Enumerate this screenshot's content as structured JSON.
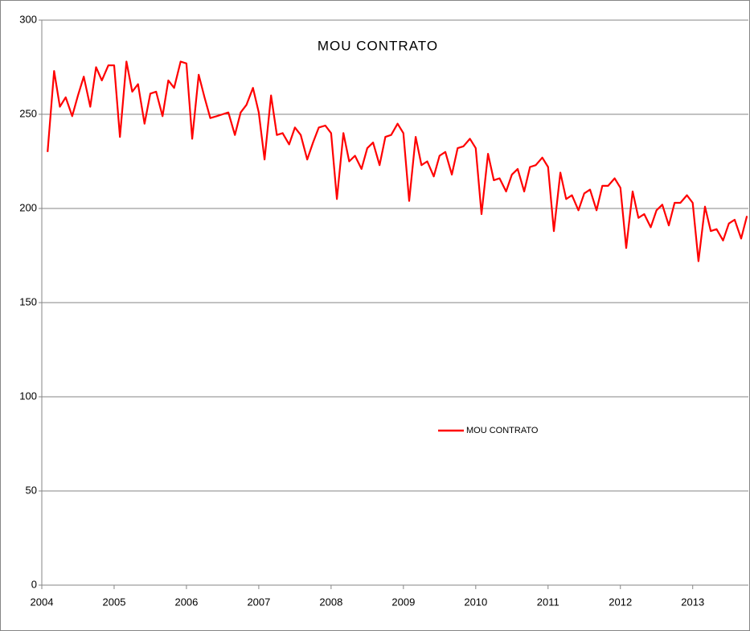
{
  "chart_data": {
    "type": "line",
    "title": "MOU CONTRATO",
    "x": [
      2004.08,
      2004.17,
      2004.25,
      2004.33,
      2004.42,
      2004.5,
      2004.58,
      2004.67,
      2004.75,
      2004.83,
      2004.92,
      2005,
      2005.08,
      2005.17,
      2005.25,
      2005.33,
      2005.42,
      2005.5,
      2005.58,
      2005.67,
      2005.75,
      2005.83,
      2005.92,
      2006,
      2006.08,
      2006.17,
      2006.25,
      2006.33,
      2006.42,
      2006.5,
      2006.58,
      2006.67,
      2006.75,
      2006.83,
      2006.92,
      2007,
      2007.08,
      2007.17,
      2007.25,
      2007.33,
      2007.42,
      2007.5,
      2007.58,
      2007.67,
      2007.75,
      2007.83,
      2007.92,
      2008,
      2008.08,
      2008.17,
      2008.25,
      2008.33,
      2008.42,
      2008.5,
      2008.58,
      2008.67,
      2008.75,
      2008.83,
      2008.92,
      2009,
      2009.08,
      2009.17,
      2009.25,
      2009.33,
      2009.42,
      2009.5,
      2009.58,
      2009.67,
      2009.75,
      2009.83,
      2009.92,
      2010,
      2010.08,
      2010.17,
      2010.25,
      2010.33,
      2010.42,
      2010.5,
      2010.58,
      2010.67,
      2010.75,
      2010.83,
      2010.92,
      2011,
      2011.08,
      2011.17,
      2011.25,
      2011.33,
      2011.42,
      2011.5,
      2011.58,
      2011.67,
      2011.75,
      2011.83,
      2011.92,
      2012,
      2012.08,
      2012.17,
      2012.25,
      2012.33,
      2012.42,
      2012.5,
      2012.58,
      2012.67,
      2012.75,
      2012.83,
      2012.92,
      2013,
      2013.08,
      2013.17,
      2013.25,
      2013.33,
      2013.42,
      2013.5,
      2013.58,
      2013.67,
      2013.75
    ],
    "series": [
      {
        "name": "MOU CONTRATO",
        "color": "#ff0000",
        "values": [
          230,
          273,
          254,
          259,
          249,
          260,
          270,
          254,
          275,
          268,
          276,
          276,
          238,
          278,
          262,
          266,
          245,
          261,
          262,
          249,
          268,
          264,
          278,
          277,
          237,
          271,
          259,
          248,
          249,
          250,
          251,
          239,
          251,
          255,
          264,
          251,
          226,
          260,
          239,
          240,
          234,
          243,
          239,
          226,
          235,
          243,
          244,
          240,
          205,
          240,
          225,
          228,
          221,
          232,
          235,
          223,
          238,
          239,
          245,
          240,
          204,
          238,
          223,
          225,
          217,
          228,
          230,
          218,
          232,
          233,
          237,
          232,
          197,
          229,
          215,
          216,
          209,
          218,
          221,
          209,
          222,
          223,
          227,
          222,
          188,
          219,
          205,
          207,
          199,
          208,
          210,
          199,
          212,
          212,
          216,
          211,
          179,
          209,
          195,
          197,
          190,
          199,
          202,
          191,
          203,
          203,
          207,
          203,
          172,
          201,
          188,
          189,
          183,
          192,
          194,
          184,
          196
        ]
      }
    ],
    "xlim": [
      2004,
      2013.77
    ],
    "xticks": [
      2004,
      2005,
      2006,
      2007,
      2008,
      2009,
      2010,
      2011,
      2012,
      2013
    ],
    "ylim": [
      0,
      300
    ],
    "yticks": [
      0,
      50,
      100,
      150,
      200,
      250,
      300
    ],
    "grid": true
  }
}
